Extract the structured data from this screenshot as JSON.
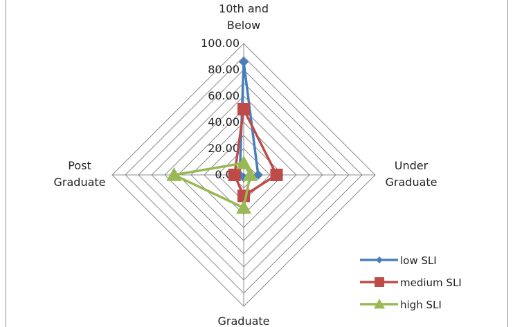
{
  "chart_data": {
    "type": "radar",
    "categories": [
      "10th and Below",
      "Under Graduate",
      "Graduate",
      "Post Graduate"
    ],
    "category_lines": [
      [
        "10th and",
        "Below"
      ],
      [
        "Under",
        "Graduate"
      ],
      [
        "Graduate"
      ],
      [
        "Post",
        "Graduate"
      ]
    ],
    "ticks": [
      "0.00",
      "20.00",
      "40.00",
      "60.00",
      "80.00",
      "100.00"
    ],
    "rlim": [
      0,
      100
    ],
    "grid": true,
    "legend_position": "bottom-right",
    "series": [
      {
        "name": "low SLI",
        "values": [
          86,
          11,
          2,
          3
        ],
        "color": "#4a7ebb",
        "marker": "diamond"
      },
      {
        "name": "medium SLI",
        "values": [
          50,
          25,
          16,
          7
        ],
        "color": "#be4b48",
        "marker": "square"
      },
      {
        "name": "high SLI",
        "values": [
          9,
          5,
          25,
          53
        ],
        "color": "#98b954",
        "marker": "triangle"
      }
    ]
  }
}
